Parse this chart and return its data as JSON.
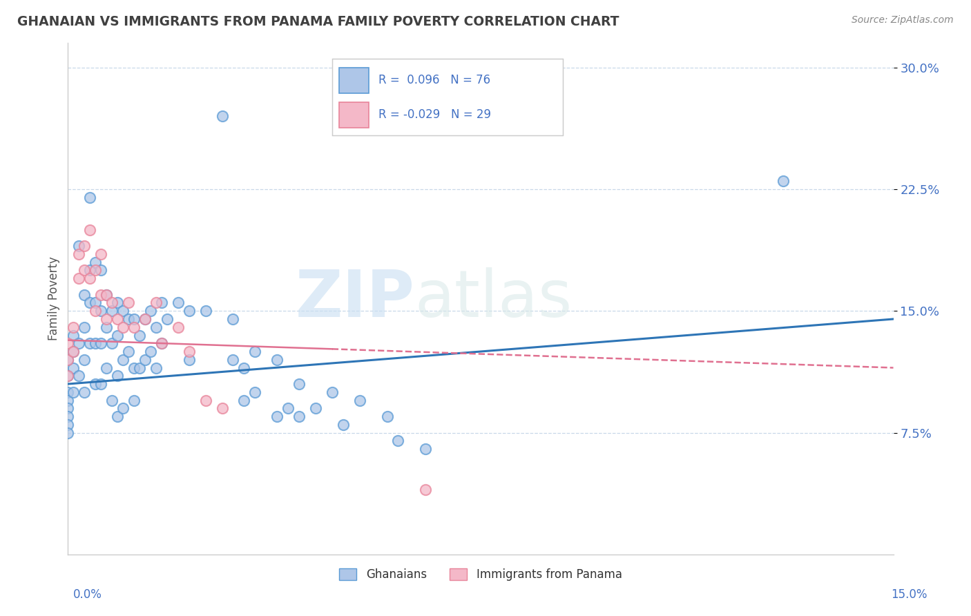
{
  "title": "GHANAIAN VS IMMIGRANTS FROM PANAMA FAMILY POVERTY CORRELATION CHART",
  "source_text": "Source: ZipAtlas.com",
  "ylabel": "Family Poverty",
  "y_tick_labels": [
    "7.5%",
    "15.0%",
    "22.5%",
    "30.0%"
  ],
  "y_tick_values": [
    0.075,
    0.15,
    0.225,
    0.3
  ],
  "x_range": [
    0.0,
    0.15
  ],
  "y_range": [
    0.0,
    0.315
  ],
  "watermark_zip": "ZIP",
  "watermark_atlas": "atlas",
  "ghanaian_color": "#aec6e8",
  "panama_color": "#f4b8c8",
  "ghanaian_edge_color": "#5b9bd5",
  "panama_edge_color": "#e8849a",
  "ghanaian_line_color": "#2e75b6",
  "panama_line_color": "#e07090",
  "title_color": "#404040",
  "axis_label_color": "#4472c4",
  "grid_color": "#c8d8e8",
  "ghanaian_scatter": [
    [
      0.0,
      0.12
    ],
    [
      0.0,
      0.11
    ],
    [
      0.0,
      0.1
    ],
    [
      0.0,
      0.095
    ],
    [
      0.0,
      0.09
    ],
    [
      0.0,
      0.085
    ],
    [
      0.0,
      0.08
    ],
    [
      0.0,
      0.075
    ],
    [
      0.001,
      0.135
    ],
    [
      0.001,
      0.125
    ],
    [
      0.001,
      0.115
    ],
    [
      0.001,
      0.1
    ],
    [
      0.002,
      0.19
    ],
    [
      0.002,
      0.13
    ],
    [
      0.002,
      0.11
    ],
    [
      0.003,
      0.16
    ],
    [
      0.003,
      0.14
    ],
    [
      0.003,
      0.12
    ],
    [
      0.003,
      0.1
    ],
    [
      0.004,
      0.22
    ],
    [
      0.004,
      0.175
    ],
    [
      0.004,
      0.155
    ],
    [
      0.004,
      0.13
    ],
    [
      0.005,
      0.18
    ],
    [
      0.005,
      0.155
    ],
    [
      0.005,
      0.13
    ],
    [
      0.005,
      0.105
    ],
    [
      0.006,
      0.175
    ],
    [
      0.006,
      0.15
    ],
    [
      0.006,
      0.13
    ],
    [
      0.006,
      0.105
    ],
    [
      0.007,
      0.16
    ],
    [
      0.007,
      0.14
    ],
    [
      0.007,
      0.115
    ],
    [
      0.008,
      0.15
    ],
    [
      0.008,
      0.13
    ],
    [
      0.008,
      0.095
    ],
    [
      0.009,
      0.155
    ],
    [
      0.009,
      0.135
    ],
    [
      0.009,
      0.11
    ],
    [
      0.009,
      0.085
    ],
    [
      0.01,
      0.15
    ],
    [
      0.01,
      0.12
    ],
    [
      0.01,
      0.09
    ],
    [
      0.011,
      0.145
    ],
    [
      0.011,
      0.125
    ],
    [
      0.012,
      0.145
    ],
    [
      0.012,
      0.115
    ],
    [
      0.012,
      0.095
    ],
    [
      0.013,
      0.135
    ],
    [
      0.013,
      0.115
    ],
    [
      0.014,
      0.145
    ],
    [
      0.014,
      0.12
    ],
    [
      0.015,
      0.15
    ],
    [
      0.015,
      0.125
    ],
    [
      0.016,
      0.14
    ],
    [
      0.016,
      0.115
    ],
    [
      0.017,
      0.155
    ],
    [
      0.017,
      0.13
    ],
    [
      0.018,
      0.145
    ],
    [
      0.02,
      0.155
    ],
    [
      0.022,
      0.15
    ],
    [
      0.022,
      0.12
    ],
    [
      0.025,
      0.15
    ],
    [
      0.028,
      0.27
    ],
    [
      0.03,
      0.145
    ],
    [
      0.03,
      0.12
    ],
    [
      0.032,
      0.115
    ],
    [
      0.032,
      0.095
    ],
    [
      0.034,
      0.125
    ],
    [
      0.034,
      0.1
    ],
    [
      0.038,
      0.12
    ],
    [
      0.038,
      0.085
    ],
    [
      0.04,
      0.09
    ],
    [
      0.042,
      0.105
    ],
    [
      0.042,
      0.085
    ],
    [
      0.045,
      0.09
    ],
    [
      0.048,
      0.1
    ],
    [
      0.05,
      0.08
    ],
    [
      0.053,
      0.095
    ],
    [
      0.058,
      0.085
    ],
    [
      0.06,
      0.07
    ],
    [
      0.065,
      0.065
    ],
    [
      0.13,
      0.23
    ]
  ],
  "panama_scatter": [
    [
      0.0,
      0.13
    ],
    [
      0.0,
      0.12
    ],
    [
      0.0,
      0.11
    ],
    [
      0.001,
      0.14
    ],
    [
      0.001,
      0.125
    ],
    [
      0.002,
      0.185
    ],
    [
      0.002,
      0.17
    ],
    [
      0.003,
      0.19
    ],
    [
      0.003,
      0.175
    ],
    [
      0.004,
      0.2
    ],
    [
      0.004,
      0.17
    ],
    [
      0.005,
      0.175
    ],
    [
      0.005,
      0.15
    ],
    [
      0.006,
      0.185
    ],
    [
      0.006,
      0.16
    ],
    [
      0.007,
      0.16
    ],
    [
      0.007,
      0.145
    ],
    [
      0.008,
      0.155
    ],
    [
      0.009,
      0.145
    ],
    [
      0.01,
      0.14
    ],
    [
      0.011,
      0.155
    ],
    [
      0.012,
      0.14
    ],
    [
      0.014,
      0.145
    ],
    [
      0.016,
      0.155
    ],
    [
      0.017,
      0.13
    ],
    [
      0.02,
      0.14
    ],
    [
      0.022,
      0.125
    ],
    [
      0.025,
      0.095
    ],
    [
      0.028,
      0.09
    ],
    [
      0.065,
      0.04
    ]
  ],
  "gh_line_x": [
    0.0,
    0.15
  ],
  "gh_line_y": [
    0.105,
    0.145
  ],
  "pa_line_x": [
    0.0,
    0.15
  ],
  "pa_line_y": [
    0.132,
    0.115
  ]
}
